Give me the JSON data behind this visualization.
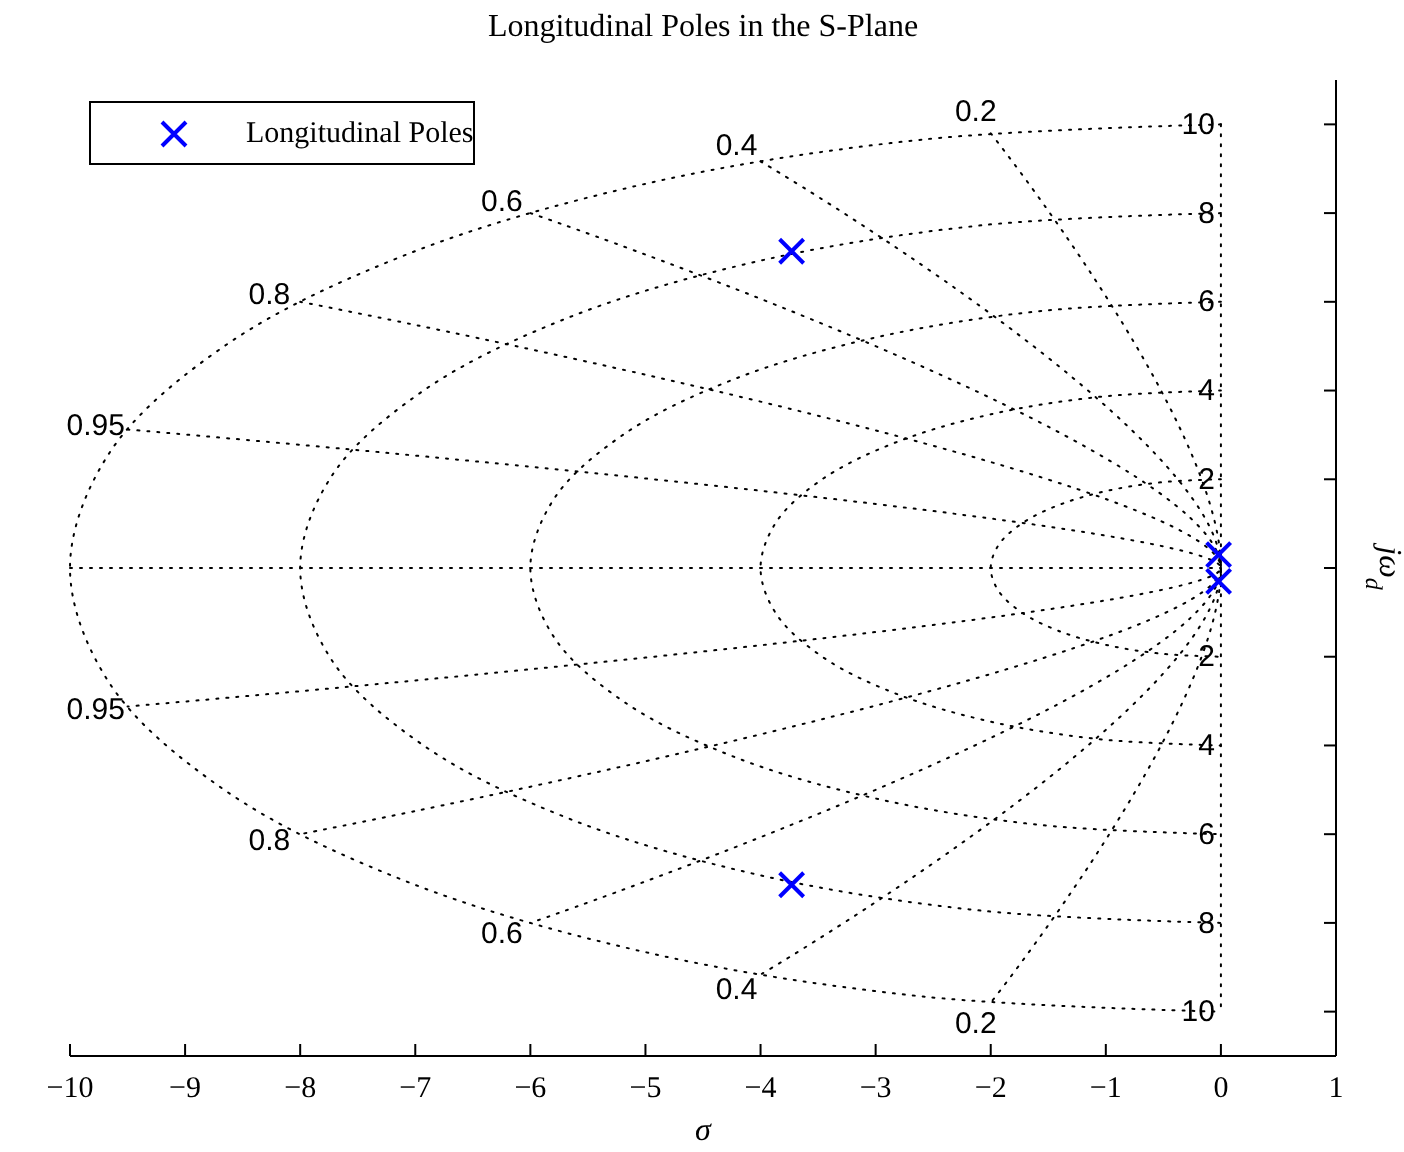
{
  "chart_data": {
    "type": "scatter",
    "title": "Longitudinal Poles in the S-Plane",
    "xlabel": "σ",
    "ylabel": "jω$_{d}$",
    "xlim": [
      -10,
      1
    ],
    "xticks": [
      -10,
      -9,
      -8,
      -7,
      -6,
      -5,
      -4,
      -3,
      -2,
      -1,
      0,
      1
    ],
    "ylim": [
      -11,
      11
    ],
    "yticks": [
      {
        "value": -10,
        "label": "10"
      },
      {
        "value": -8,
        "label": "8"
      },
      {
        "value": -6,
        "label": "6"
      },
      {
        "value": -4,
        "label": "4"
      },
      {
        "value": -2,
        "label": "2"
      },
      {
        "value": 0,
        "label": null
      },
      2,
      4,
      6,
      8,
      10
    ],
    "legend": "top left",
    "series": [
      {
        "type": "line",
        "color": "#000000",
        "line_style": "dotted",
        "marker": "none",
        "x": [
          0,
          -0.518,
          -1,
          -1.414,
          -1.732,
          -1.932,
          -2,
          -1.932,
          -1.732,
          -1.414,
          -1,
          -0.518,
          0
        ],
        "values": [
          2,
          1.932,
          1.732,
          1.414,
          1,
          0.518,
          0,
          -0.518,
          -1,
          -1.414,
          -1.732,
          -1.932,
          -2
        ]
      },
      {
        "type": "line",
        "color": "#000000",
        "line_style": "dotted",
        "marker": "none",
        "x": [
          0,
          -1.035,
          -2,
          -2.828,
          -3.464,
          -3.864,
          -4,
          -3.864,
          -3.464,
          -2.828,
          -2,
          -1.035,
          0
        ],
        "values": [
          4,
          3.864,
          3.464,
          2.828,
          2,
          1.035,
          0,
          -1.035,
          -2,
          -2.828,
          -3.464,
          -3.864,
          -4
        ]
      },
      {
        "type": "line",
        "color": "#000000",
        "line_style": "dotted",
        "marker": "none",
        "x": [
          0,
          -1.553,
          -3,
          -4.243,
          -5.196,
          -5.796,
          -6,
          -5.796,
          -5.196,
          -4.243,
          -3,
          -1.553,
          0
        ],
        "values": [
          6,
          5.796,
          5.196,
          4.243,
          3,
          1.553,
          0,
          -1.553,
          -3,
          -4.243,
          -5.196,
          -5.796,
          -6
        ]
      },
      {
        "type": "line",
        "color": "#000000",
        "line_style": "dotted",
        "marker": "none",
        "x": [
          0,
          -2.071,
          -4,
          -5.657,
          -6.928,
          -7.727,
          -8,
          -7.727,
          -6.928,
          -5.657,
          -4,
          -2.071,
          0
        ],
        "values": [
          8,
          7.727,
          6.928,
          5.657,
          4,
          2.071,
          0,
          -2.071,
          -4,
          -5.657,
          -6.928,
          -7.727,
          -8
        ]
      },
      {
        "type": "line",
        "color": "#000000",
        "line_style": "dotted",
        "marker": "none",
        "x": [
          0,
          -2.588,
          -5,
          -7.071,
          -8.66,
          -9.659,
          -10,
          -9.659,
          -8.66,
          -7.071,
          -5,
          -2.588,
          0
        ],
        "values": [
          10,
          9.659,
          8.66,
          7.071,
          5,
          2.588,
          0,
          -2.588,
          -5,
          -7.071,
          -8.66,
          -9.659,
          -10
        ]
      },
      {
        "type": "line",
        "color": "#000000",
        "line_style": "dotted",
        "marker": "none",
        "x": [
          0,
          0
        ],
        "values": [
          10,
          -10
        ]
      },
      {
        "type": "line",
        "name": "0.2",
        "color": "#000000",
        "line_style": "dotted",
        "marker": "none",
        "x": [
          -2,
          0,
          -2
        ],
        "values": [
          9.798,
          0,
          -9.798
        ]
      },
      {
        "type": "line",
        "name": "0.4",
        "color": "#000000",
        "line_style": "dotted",
        "marker": "none",
        "x": [
          -4,
          0,
          -4
        ],
        "values": [
          9.165,
          0,
          -9.165
        ]
      },
      {
        "type": "line",
        "name": "0.6",
        "color": "#000000",
        "line_style": "dotted",
        "marker": "none",
        "x": [
          -6,
          0,
          -6
        ],
        "values": [
          8,
          0,
          -8
        ]
      },
      {
        "type": "line",
        "name": "0.8",
        "color": "#000000",
        "line_style": "dotted",
        "marker": "none",
        "x": [
          -8,
          0,
          -8
        ],
        "values": [
          6,
          0,
          -6
        ]
      },
      {
        "type": "line",
        "name": "0.95",
        "color": "#000000",
        "line_style": "dotted",
        "marker": "none",
        "x": [
          -9.5,
          0,
          -9.5
        ],
        "values": [
          3.122,
          0,
          -3.122
        ]
      },
      {
        "type": "line",
        "color": "#000000",
        "line_style": "dotted",
        "marker": "none",
        "x": [
          -10,
          0
        ],
        "values": [
          0,
          0
        ]
      },
      {
        "name": "Longitudinal Poles",
        "color": "#0000ff",
        "marker": "cross",
        "x": [
          -3.73,
          -3.73,
          -0.02,
          -0.02
        ],
        "values": [
          7.14,
          -7.14,
          0.3,
          -0.3
        ]
      }
    ]
  }
}
